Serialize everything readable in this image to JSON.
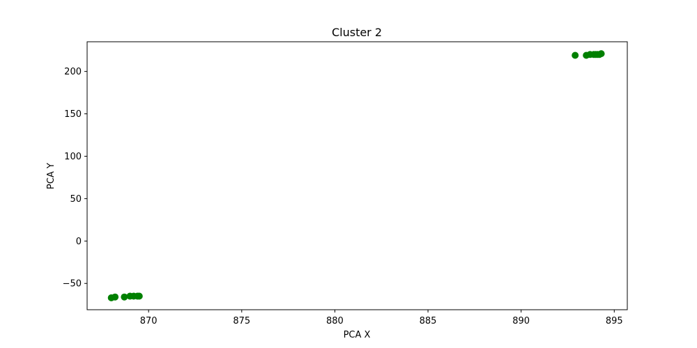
{
  "chart_data": {
    "type": "scatter",
    "title": "Cluster 2",
    "xlabel": "PCA X",
    "ylabel": "PCA Y",
    "xlim": [
      866.7,
      895.7
    ],
    "ylim": [
      -81,
      235
    ],
    "xticks": [
      870,
      875,
      880,
      885,
      890,
      895
    ],
    "yticks": [
      -50,
      0,
      50,
      100,
      150,
      200
    ],
    "xtick_labels": [
      "870",
      "875",
      "880",
      "885",
      "890",
      "895"
    ],
    "ytick_labels": [
      "−50",
      "0",
      "50",
      "100",
      "150",
      "200"
    ],
    "grid": false,
    "color": "#008000",
    "points": [
      {
        "x": 868.0,
        "y": -67
      },
      {
        "x": 868.2,
        "y": -66
      },
      {
        "x": 868.7,
        "y": -66
      },
      {
        "x": 869.0,
        "y": -65
      },
      {
        "x": 869.2,
        "y": -65
      },
      {
        "x": 869.4,
        "y": -65
      },
      {
        "x": 869.5,
        "y": -65
      },
      {
        "x": 892.9,
        "y": 219
      },
      {
        "x": 893.5,
        "y": 219
      },
      {
        "x": 893.7,
        "y": 220
      },
      {
        "x": 893.9,
        "y": 220
      },
      {
        "x": 894.0,
        "y": 220
      },
      {
        "x": 894.1,
        "y": 220
      },
      {
        "x": 894.2,
        "y": 220
      },
      {
        "x": 894.3,
        "y": 221
      }
    ]
  }
}
